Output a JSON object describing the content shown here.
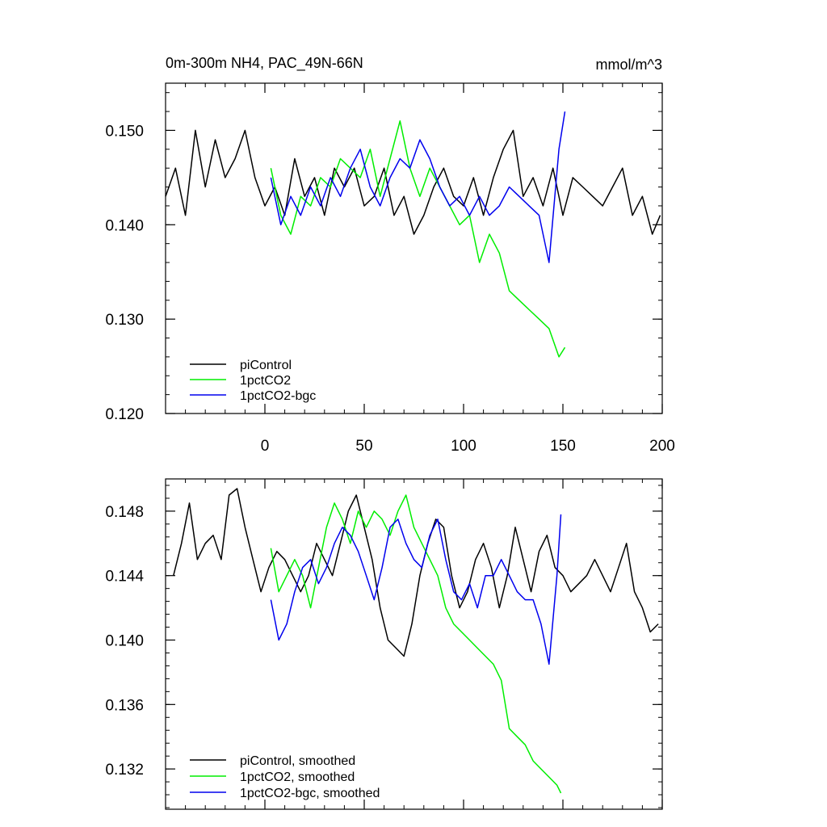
{
  "chart_data": [
    {
      "type": "line",
      "title": "0m-300m NH4, PAC_49N-66N",
      "units": "mmol/m^3",
      "xlabel": "",
      "ylabel": "",
      "xlim": [
        -50,
        200
      ],
      "ylim": [
        0.12,
        0.155
      ],
      "xticks": [
        0,
        50,
        100,
        150,
        200
      ],
      "xtick_labels": [
        "0",
        "50",
        "100",
        "150",
        "200"
      ],
      "yticks": [
        0.12,
        0.13,
        0.14,
        0.15
      ],
      "ytick_labels": [
        "0.120",
        "0.130",
        "0.140",
        "0.150"
      ],
      "legend_position": "bottom-left",
      "series": [
        {
          "name": "piControl",
          "color": "#000000",
          "x": [
            -50,
            -45,
            -40,
            -35,
            -30,
            -25,
            -20,
            -15,
            -10,
            -5,
            0,
            5,
            10,
            15,
            20,
            25,
            30,
            35,
            40,
            45,
            50,
            55,
            60,
            65,
            70,
            75,
            80,
            85,
            90,
            95,
            100,
            105,
            110,
            115,
            120,
            125,
            130,
            135,
            140,
            145,
            150,
            155,
            160,
            165,
            170,
            175,
            180,
            185,
            190,
            195,
            199
          ],
          "y": [
            0.143,
            0.146,
            0.141,
            0.15,
            0.144,
            0.149,
            0.145,
            0.147,
            0.15,
            0.145,
            0.142,
            0.144,
            0.141,
            0.147,
            0.143,
            0.145,
            0.141,
            0.146,
            0.144,
            0.146,
            0.142,
            0.143,
            0.146,
            0.141,
            0.143,
            0.139,
            0.141,
            0.144,
            0.146,
            0.143,
            0.142,
            0.145,
            0.141,
            0.145,
            0.148,
            0.15,
            0.143,
            0.145,
            0.142,
            0.146,
            0.141,
            0.145,
            0.144,
            0.143,
            0.142,
            0.144,
            0.146,
            0.141,
            0.143,
            0.139,
            0.141
          ]
        },
        {
          "name": "1pctCO2",
          "color": "#00ee00",
          "x": [
            3,
            8,
            13,
            18,
            23,
            28,
            33,
            38,
            43,
            48,
            53,
            58,
            63,
            68,
            73,
            78,
            83,
            88,
            93,
            98,
            103,
            108,
            113,
            118,
            123,
            128,
            133,
            138,
            143,
            148,
            151
          ],
          "y": [
            0.146,
            0.141,
            0.139,
            0.143,
            0.142,
            0.145,
            0.144,
            0.147,
            0.146,
            0.145,
            0.148,
            0.143,
            0.147,
            0.151,
            0.146,
            0.143,
            0.146,
            0.144,
            0.142,
            0.14,
            0.141,
            0.136,
            0.139,
            0.137,
            0.133,
            0.132,
            0.131,
            0.13,
            0.129,
            0.126,
            0.127
          ]
        },
        {
          "name": "1pctCO2-bgc",
          "color": "#0000ee",
          "x": [
            3,
            8,
            13,
            18,
            23,
            28,
            33,
            38,
            43,
            48,
            53,
            58,
            63,
            68,
            73,
            78,
            83,
            88,
            93,
            98,
            103,
            108,
            113,
            118,
            123,
            128,
            133,
            138,
            143,
            148,
            151
          ],
          "y": [
            0.145,
            0.14,
            0.143,
            0.141,
            0.144,
            0.142,
            0.145,
            0.143,
            0.146,
            0.148,
            0.144,
            0.142,
            0.145,
            0.147,
            0.146,
            0.149,
            0.147,
            0.144,
            0.142,
            0.143,
            0.141,
            0.143,
            0.141,
            0.142,
            0.144,
            0.143,
            0.142,
            0.141,
            0.136,
            0.148,
            0.152
          ]
        }
      ]
    },
    {
      "type": "line",
      "title": "",
      "xlabel": "",
      "ylabel": "",
      "xlim": [
        -50,
        200
      ],
      "ylim": [
        0.1295,
        0.15
      ],
      "xticks": [
        0,
        50,
        100,
        150,
        200
      ],
      "yticks": [
        0.132,
        0.136,
        0.14,
        0.144,
        0.148
      ],
      "ytick_labels": [
        "0.132",
        "0.136",
        "0.140",
        "0.144",
        "0.148"
      ],
      "legend_position": "bottom-left",
      "series": [
        {
          "name": "piControl, smoothed",
          "color": "#000000",
          "x": [
            -46,
            -42,
            -38,
            -34,
            -30,
            -26,
            -22,
            -18,
            -14,
            -10,
            -6,
            -2,
            2,
            6,
            10,
            14,
            18,
            22,
            26,
            30,
            34,
            38,
            42,
            46,
            50,
            54,
            58,
            62,
            66,
            70,
            74,
            78,
            82,
            86,
            90,
            94,
            98,
            102,
            106,
            110,
            114,
            118,
            122,
            126,
            130,
            134,
            138,
            142,
            146,
            150,
            154,
            158,
            162,
            166,
            170,
            174,
            178,
            182,
            186,
            190,
            194,
            198
          ],
          "y": [
            0.144,
            0.146,
            0.1485,
            0.145,
            0.146,
            0.1465,
            0.145,
            0.149,
            0.1494,
            0.147,
            0.145,
            0.143,
            0.1445,
            0.1455,
            0.145,
            0.144,
            0.143,
            0.144,
            0.146,
            0.145,
            0.144,
            0.146,
            0.148,
            0.149,
            0.147,
            0.145,
            0.142,
            0.14,
            0.1395,
            0.139,
            0.141,
            0.144,
            0.146,
            0.1475,
            0.147,
            0.144,
            0.142,
            0.143,
            0.145,
            0.146,
            0.1445,
            0.142,
            0.144,
            0.147,
            0.145,
            0.143,
            0.1455,
            0.1465,
            0.1445,
            0.144,
            0.143,
            0.1435,
            0.144,
            0.145,
            0.144,
            0.143,
            0.1445,
            0.146,
            0.143,
            0.142,
            0.1405,
            0.141
          ]
        },
        {
          "name": "1pctCO2, smoothed",
          "color": "#00ee00",
          "x": [
            3,
            7,
            11,
            15,
            19,
            23,
            27,
            31,
            35,
            39,
            43,
            47,
            51,
            55,
            59,
            63,
            67,
            71,
            75,
            79,
            83,
            87,
            91,
            95,
            99,
            103,
            107,
            111,
            115,
            119,
            123,
            127,
            131,
            135,
            139,
            143,
            147,
            149
          ],
          "y": [
            0.1457,
            0.143,
            0.144,
            0.145,
            0.144,
            0.142,
            0.1445,
            0.147,
            0.1485,
            0.1475,
            0.146,
            0.148,
            0.147,
            0.148,
            0.1475,
            0.1465,
            0.148,
            0.149,
            0.147,
            0.146,
            0.145,
            0.144,
            0.142,
            0.141,
            0.1405,
            0.14,
            0.1395,
            0.139,
            0.1385,
            0.1375,
            0.1345,
            0.134,
            0.1335,
            0.1325,
            0.132,
            0.1315,
            0.131,
            0.1305
          ]
        },
        {
          "name": "1pctCO2-bgc, smoothed",
          "color": "#0000ee",
          "x": [
            3,
            7,
            11,
            15,
            19,
            23,
            27,
            31,
            35,
            39,
            43,
            47,
            51,
            55,
            59,
            63,
            67,
            71,
            75,
            79,
            83,
            87,
            91,
            95,
            99,
            103,
            107,
            111,
            115,
            119,
            123,
            127,
            131,
            135,
            139,
            143,
            147,
            149
          ],
          "y": [
            0.1425,
            0.14,
            0.141,
            0.143,
            0.1445,
            0.145,
            0.1435,
            0.1445,
            0.146,
            0.147,
            0.1465,
            0.1455,
            0.144,
            0.1425,
            0.1445,
            0.147,
            0.1475,
            0.146,
            0.145,
            0.1445,
            0.1465,
            0.1475,
            0.145,
            0.143,
            0.1425,
            0.1435,
            0.142,
            0.144,
            0.144,
            0.145,
            0.144,
            0.143,
            0.1425,
            0.1425,
            0.141,
            0.1385,
            0.144,
            0.1478
          ]
        }
      ]
    }
  ]
}
